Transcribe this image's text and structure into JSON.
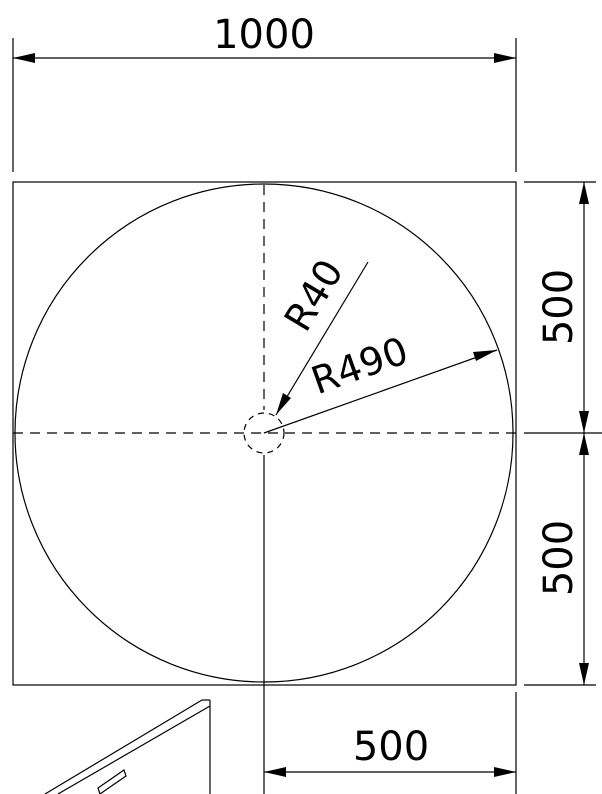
{
  "dimensions": {
    "width_top": "1000",
    "height_upper": "500",
    "height_lower": "500",
    "width_bottom": "500",
    "inner_radius": "R40",
    "outer_radius": "R490"
  }
}
